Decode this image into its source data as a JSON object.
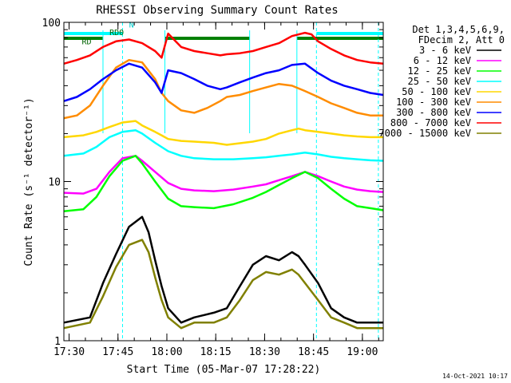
{
  "chart_data": {
    "type": "line",
    "title": "RHESSI Observing Summary Count Rates",
    "xlabel": "Start Time (05-Mar-07 17:28:22)",
    "ylabel": "Count Rate (s⁻¹ detector⁻¹)",
    "x_unit": "minutes",
    "xlim": [
      0,
      98
    ],
    "ylim": [
      1,
      100
    ],
    "log_y": true,
    "grid": false,
    "x_ticks": [
      {
        "value": 1.6,
        "label": "17:30"
      },
      {
        "value": 16.6,
        "label": "17:45"
      },
      {
        "value": 31.6,
        "label": "18:00"
      },
      {
        "value": 46.6,
        "label": "18:15"
      },
      {
        "value": 61.6,
        "label": "18:30"
      },
      {
        "value": 76.6,
        "label": "18:45"
      },
      {
        "value": 91.6,
        "label": "19:00"
      }
    ],
    "y_tick_labels": [
      {
        "value": 1,
        "label": "1"
      },
      {
        "value": 10,
        "label": "10"
      },
      {
        "value": 100,
        "label": "100"
      }
    ],
    "legend_header": [
      "Det 1,3,4,5,6,9,",
      "FDecim 2, Att 0"
    ],
    "legend_placement": "right",
    "series": [
      {
        "name": "3 - 6 keV",
        "color": "#000000",
        "x": [
          0,
          8,
          12,
          16,
          20,
          24,
          26,
          28,
          30,
          32,
          36,
          40,
          46,
          50,
          54,
          58,
          62,
          66,
          70,
          72,
          74,
          78,
          82,
          86,
          90,
          94,
          98
        ],
        "y": [
          1.3,
          1.4,
          2.3,
          3.5,
          5.2,
          6.0,
          4.8,
          3.2,
          2.2,
          1.6,
          1.3,
          1.4,
          1.5,
          1.6,
          2.2,
          3.0,
          3.4,
          3.2,
          3.6,
          3.4,
          3.0,
          2.3,
          1.6,
          1.4,
          1.3,
          1.3,
          1.3
        ]
      },
      {
        "name": "6 - 12 keV",
        "color": "#ff00ff",
        "x": [
          0,
          6,
          10,
          14,
          18,
          22,
          24,
          28,
          32,
          36,
          40,
          46,
          52,
          58,
          62,
          66,
          70,
          74,
          78,
          82,
          86,
          90,
          94,
          98
        ],
        "y": [
          8.5,
          8.4,
          9.0,
          11.5,
          14.0,
          14.5,
          13.5,
          11.5,
          9.8,
          9.0,
          8.8,
          8.7,
          8.9,
          9.3,
          9.6,
          10.2,
          10.8,
          11.5,
          10.8,
          10.0,
          9.3,
          8.9,
          8.7,
          8.6
        ]
      },
      {
        "name": "12 - 25 keV",
        "color": "#00ff00",
        "x": [
          0,
          6,
          10,
          14,
          18,
          22,
          24,
          28,
          32,
          36,
          40,
          46,
          52,
          58,
          62,
          66,
          70,
          74,
          78,
          82,
          86,
          90,
          94,
          98
        ],
        "y": [
          6.5,
          6.7,
          8.0,
          10.8,
          13.5,
          14.5,
          13.0,
          10.0,
          7.8,
          7.0,
          6.9,
          6.8,
          7.2,
          7.9,
          8.6,
          9.5,
          10.5,
          11.5,
          10.5,
          9.0,
          7.8,
          7.0,
          6.8,
          6.6
        ]
      },
      {
        "name": "25 - 50 keV",
        "color": "#00ffff",
        "x": [
          0,
          6,
          10,
          14,
          18,
          22,
          24,
          28,
          32,
          36,
          40,
          46,
          52,
          58,
          62,
          66,
          70,
          74,
          78,
          82,
          86,
          90,
          94,
          98
        ],
        "y": [
          14.5,
          15.0,
          16.5,
          19.0,
          20.5,
          21.0,
          20.0,
          17.5,
          15.5,
          14.5,
          14.0,
          13.8,
          13.8,
          14.0,
          14.2,
          14.5,
          14.8,
          15.2,
          14.8,
          14.3,
          14.0,
          13.8,
          13.6,
          13.5
        ]
      },
      {
        "name": "50 - 100 keV",
        "color": "#ffd700",
        "x": [
          0,
          6,
          10,
          14,
          18,
          22,
          24,
          28,
          30,
          32,
          36,
          40,
          46,
          50,
          52,
          58,
          62,
          66,
          70,
          72,
          74,
          78,
          82,
          86,
          90,
          94,
          98
        ],
        "y": [
          19.0,
          19.5,
          20.5,
          22.0,
          23.5,
          24.0,
          22.5,
          20.5,
          19.5,
          18.5,
          18.0,
          17.8,
          17.5,
          17.0,
          17.2,
          17.8,
          18.5,
          20.0,
          21.0,
          21.5,
          21.0,
          20.5,
          20.0,
          19.5,
          19.2,
          19.0,
          19.0
        ]
      },
      {
        "name": "100 - 300 keV",
        "color": "#ff8c00",
        "x": [
          0,
          4,
          8,
          12,
          16,
          20,
          24,
          28,
          30,
          32,
          36,
          40,
          44,
          48,
          50,
          54,
          58,
          62,
          66,
          70,
          74,
          78,
          82,
          86,
          90,
          94,
          98
        ],
        "y": [
          25.0,
          26.0,
          30.0,
          40.0,
          52.0,
          58.0,
          56.0,
          44.0,
          36.0,
          32.0,
          28.0,
          27.0,
          29.0,
          32.0,
          34.0,
          35.0,
          37.0,
          39.0,
          41.0,
          40.0,
          37.0,
          34.0,
          31.0,
          29.0,
          27.0,
          26.0,
          26.0
        ]
      },
      {
        "name": "300 - 800 keV",
        "color": "#0000ff",
        "x": [
          0,
          4,
          8,
          12,
          16,
          20,
          24,
          28,
          30,
          32,
          36,
          40,
          44,
          48,
          50,
          54,
          58,
          62,
          66,
          70,
          74,
          78,
          82,
          86,
          90,
          94,
          98
        ],
        "y": [
          32.0,
          34.0,
          38.0,
          44.0,
          50.0,
          55.0,
          52.0,
          42.0,
          36.0,
          50.0,
          48.0,
          44.0,
          40.0,
          38.0,
          39.0,
          42.0,
          45.0,
          48.0,
          50.0,
          54.0,
          55.0,
          48.0,
          43.0,
          40.0,
          38.0,
          36.0,
          35.0
        ]
      },
      {
        "name": "800 - 7000 keV",
        "color": "#ff0000",
        "x": [
          0,
          4,
          8,
          12,
          16,
          20,
          24,
          28,
          30,
          32,
          36,
          40,
          44,
          48,
          50,
          54,
          58,
          62,
          66,
          70,
          74,
          76,
          78,
          82,
          86,
          90,
          94,
          98
        ],
        "y": [
          55.0,
          58.0,
          62.0,
          70.0,
          76.0,
          78.0,
          74.0,
          66.0,
          60.0,
          85.0,
          70.0,
          66.0,
          64.0,
          62.0,
          63.0,
          64.0,
          66.0,
          70.0,
          74.0,
          82.0,
          86.0,
          84.0,
          76.0,
          68.0,
          62.0,
          58.0,
          56.0,
          55.0
        ]
      },
      {
        "name": "7000 - 15000 keV",
        "color": "#808000",
        "x": [
          0,
          8,
          12,
          16,
          20,
          24,
          26,
          28,
          30,
          32,
          36,
          40,
          46,
          50,
          54,
          58,
          62,
          66,
          70,
          72,
          74,
          78,
          82,
          86,
          90,
          94,
          98
        ],
        "y": [
          1.2,
          1.3,
          1.9,
          2.9,
          4.0,
          4.3,
          3.6,
          2.5,
          1.8,
          1.4,
          1.2,
          1.3,
          1.3,
          1.4,
          1.8,
          2.4,
          2.7,
          2.6,
          2.8,
          2.6,
          2.3,
          1.8,
          1.4,
          1.3,
          1.2,
          1.2,
          1.2
        ]
      }
    ],
    "annotations": [
      {
        "label": "RD",
        "x": 5.5,
        "y": 73
      },
      {
        "label": "RD0",
        "x": 14.0,
        "y": 83
      },
      {
        "label": "N",
        "x": 20.0,
        "y": 93
      }
    ],
    "footer_date": "14-Oct-2021 10:17",
    "colors": {
      "night_bar": "#00ffff",
      "day_bar": "#008000",
      "saa_markers": "#00ffff"
    },
    "night_intervals": [
      [
        0,
        18.0
      ],
      [
        77.5,
        98
      ]
    ],
    "day_intervals": [
      [
        0,
        12.0
      ],
      [
        31.0,
        57.0
      ],
      [
        71.5,
        98
      ]
    ],
    "vertical_markers": [
      {
        "x": 18.0,
        "style": "dashed"
      },
      {
        "x": 77.5,
        "style": "dashed"
      },
      {
        "x": 96.5,
        "style": "dashed"
      }
    ],
    "attenuator_drops": [
      12.0,
      31.0,
      57.0,
      71.5
    ]
  }
}
